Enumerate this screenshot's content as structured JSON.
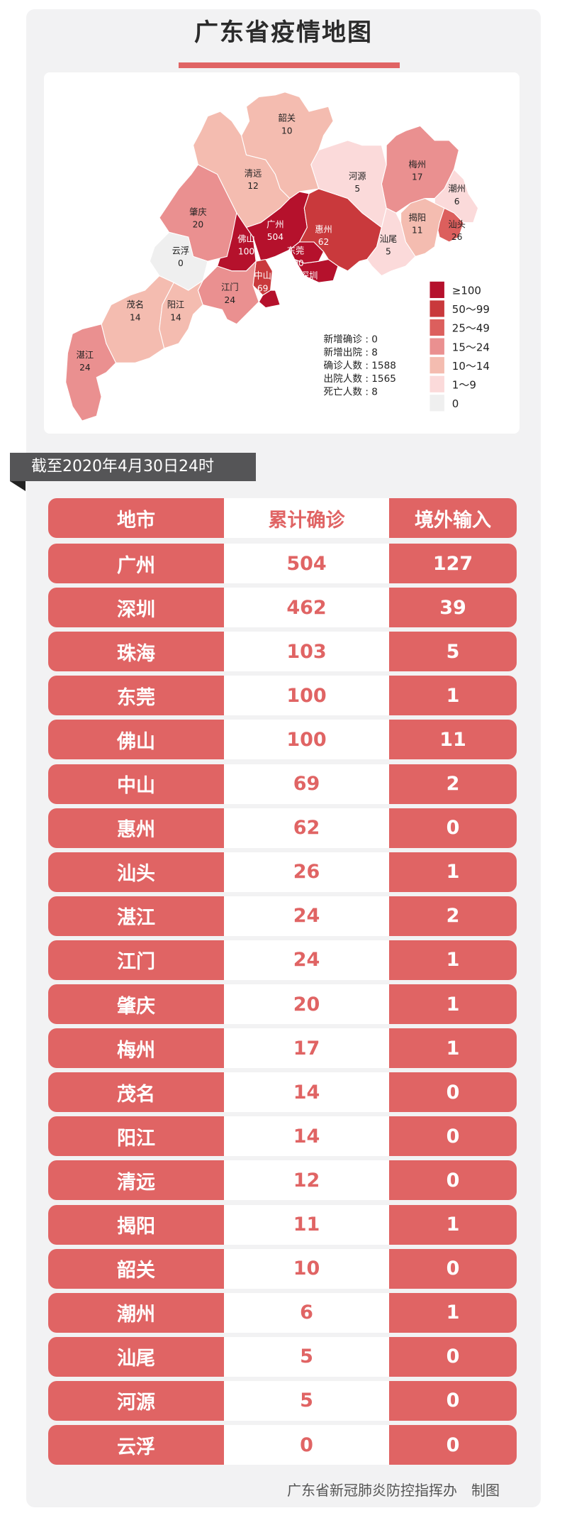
{
  "title": "广东省疫情地图",
  "stats": [
    {
      "label": "新增确诊",
      "value": "0"
    },
    {
      "label": "新增出院",
      "value": "8"
    },
    {
      "label": "确诊人数",
      "value": "1588"
    },
    {
      "label": "出院人数",
      "value": "1565"
    },
    {
      "label": "死亡人数",
      "value": "8"
    }
  ],
  "legend": [
    {
      "label": "≥100",
      "min": 100,
      "color": "#b5112c"
    },
    {
      "label": "50～99",
      "min": 50,
      "color": "#c9393c"
    },
    {
      "label": "25～49",
      "min": 25,
      "color": "#dc5f5d"
    },
    {
      "label": "15～24",
      "min": 15,
      "color": "#ea9090"
    },
    {
      "label": "10～14",
      "min": 10,
      "color": "#f4bcb0"
    },
    {
      "label": "1～9",
      "min": 1,
      "color": "#fbdada"
    },
    {
      "label": "0",
      "min": 0,
      "color": "#efefef"
    }
  ],
  "date_label": "截至2020年4月30日24时",
  "table": {
    "headers": [
      "地市",
      "累计确诊",
      "境外输入"
    ],
    "rows": [
      {
        "city": "广州",
        "confirmed": "504",
        "imported": "127"
      },
      {
        "city": "深圳",
        "confirmed": "462",
        "imported": "39"
      },
      {
        "city": "珠海",
        "confirmed": "103",
        "imported": "5"
      },
      {
        "city": "东莞",
        "confirmed": "100",
        "imported": "1"
      },
      {
        "city": "佛山",
        "confirmed": "100",
        "imported": "11"
      },
      {
        "city": "中山",
        "confirmed": "69",
        "imported": "2"
      },
      {
        "city": "惠州",
        "confirmed": "62",
        "imported": "0"
      },
      {
        "city": "汕头",
        "confirmed": "26",
        "imported": "1"
      },
      {
        "city": "湛江",
        "confirmed": "24",
        "imported": "2"
      },
      {
        "city": "江门",
        "confirmed": "24",
        "imported": "1"
      },
      {
        "city": "肇庆",
        "confirmed": "20",
        "imported": "1"
      },
      {
        "city": "梅州",
        "confirmed": "17",
        "imported": "1"
      },
      {
        "city": "茂名",
        "confirmed": "14",
        "imported": "0"
      },
      {
        "city": "阳江",
        "confirmed": "14",
        "imported": "0"
      },
      {
        "city": "清远",
        "confirmed": "12",
        "imported": "0"
      },
      {
        "city": "揭阳",
        "confirmed": "11",
        "imported": "1"
      },
      {
        "city": "韶关",
        "confirmed": "10",
        "imported": "0"
      },
      {
        "city": "潮州",
        "confirmed": "6",
        "imported": "1"
      },
      {
        "city": "汕尾",
        "confirmed": "5",
        "imported": "0"
      },
      {
        "city": "河源",
        "confirmed": "5",
        "imported": "0"
      },
      {
        "city": "云浮",
        "confirmed": "0",
        "imported": "0"
      }
    ]
  },
  "footer": {
    "org": "广东省新冠肺炎防控指挥办",
    "suffix": "制图"
  }
}
